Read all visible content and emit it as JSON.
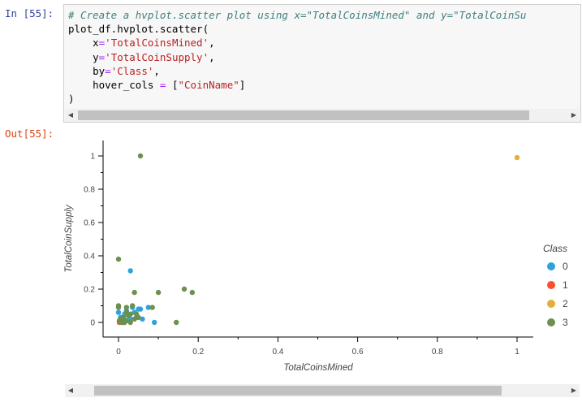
{
  "input_prompt": "In [55]:",
  "output_prompt": "Out[55]:",
  "code": {
    "line1": "# Create a hvplot.scatter plot using x=\"TotalCoinsMined\" and y=\"TotalCoinSu",
    "line2": "plot_df.hvplot.scatter(",
    "line3_key": "x",
    "line3_val": "'TotalCoinsMined'",
    "line4_key": "y",
    "line4_val": "'TotalCoinSupply'",
    "line5_key": "by",
    "line5_val": "'Class'",
    "line6_key": "hover_cols",
    "line6_val": "\"CoinName\"",
    "line7": ")"
  },
  "chart_data": {
    "type": "scatter",
    "xlabel": "TotalCoinsMined",
    "ylabel": "TotalCoinSupply",
    "xlim": [
      -0.04,
      1.04
    ],
    "ylim": [
      -0.08,
      1.08
    ],
    "xticks": [
      "0",
      "0.2",
      "0.4",
      "0.6",
      "0.8",
      "1"
    ],
    "yticks": [
      "0",
      "0.2",
      "0.4",
      "0.6",
      "0.8",
      "1"
    ],
    "legend_title": "Class",
    "legend_position": "right",
    "grid": false,
    "series": [
      {
        "name": "0",
        "color": "#30a2da",
        "points": [
          [
            0.0,
            0.06
          ],
          [
            0.005,
            0.03
          ],
          [
            0.01,
            0.02
          ],
          [
            0.015,
            0.05
          ],
          [
            0.02,
            0.01
          ],
          [
            0.025,
            0.04
          ],
          [
            0.03,
            0.31
          ],
          [
            0.035,
            0.09
          ],
          [
            0.04,
            0.06
          ],
          [
            0.045,
            0.03
          ],
          [
            0.05,
            0.08
          ],
          [
            0.055,
            0.08
          ],
          [
            0.06,
            0.02
          ],
          [
            0.075,
            0.09
          ],
          [
            0.09,
            0.0
          ],
          [
            0.02,
            0.07
          ],
          [
            0.01,
            0.0
          ],
          [
            0.03,
            0.02
          ]
        ]
      },
      {
        "name": "1",
        "color": "#fc4f30",
        "points": [
          [
            0.002,
            0.0
          ]
        ]
      },
      {
        "name": "2",
        "color": "#e5ae38",
        "points": [
          [
            1.0,
            0.99
          ]
        ]
      },
      {
        "name": "3",
        "color": "#6d904f",
        "points": [
          [
            0.055,
            1.0
          ],
          [
            0.0,
            0.38
          ],
          [
            0.0,
            0.09
          ],
          [
            0.0,
            0.1
          ],
          [
            0.002,
            0.01
          ],
          [
            0.005,
            0.02
          ],
          [
            0.008,
            0.0
          ],
          [
            0.012,
            0.03
          ],
          [
            0.018,
            0.01
          ],
          [
            0.02,
            0.09
          ],
          [
            0.025,
            0.04
          ],
          [
            0.03,
            0.0
          ],
          [
            0.035,
            0.1
          ],
          [
            0.04,
            0.18
          ],
          [
            0.045,
            0.05
          ],
          [
            0.05,
            0.03
          ],
          [
            0.085,
            0.09
          ],
          [
            0.1,
            0.18
          ],
          [
            0.145,
            0.0
          ],
          [
            0.165,
            0.2
          ],
          [
            0.185,
            0.18
          ],
          [
            0.02,
            0.06
          ],
          [
            0.03,
            0.05
          ],
          [
            0.04,
            0.02
          ],
          [
            0.015,
            0.0
          ]
        ]
      }
    ]
  }
}
